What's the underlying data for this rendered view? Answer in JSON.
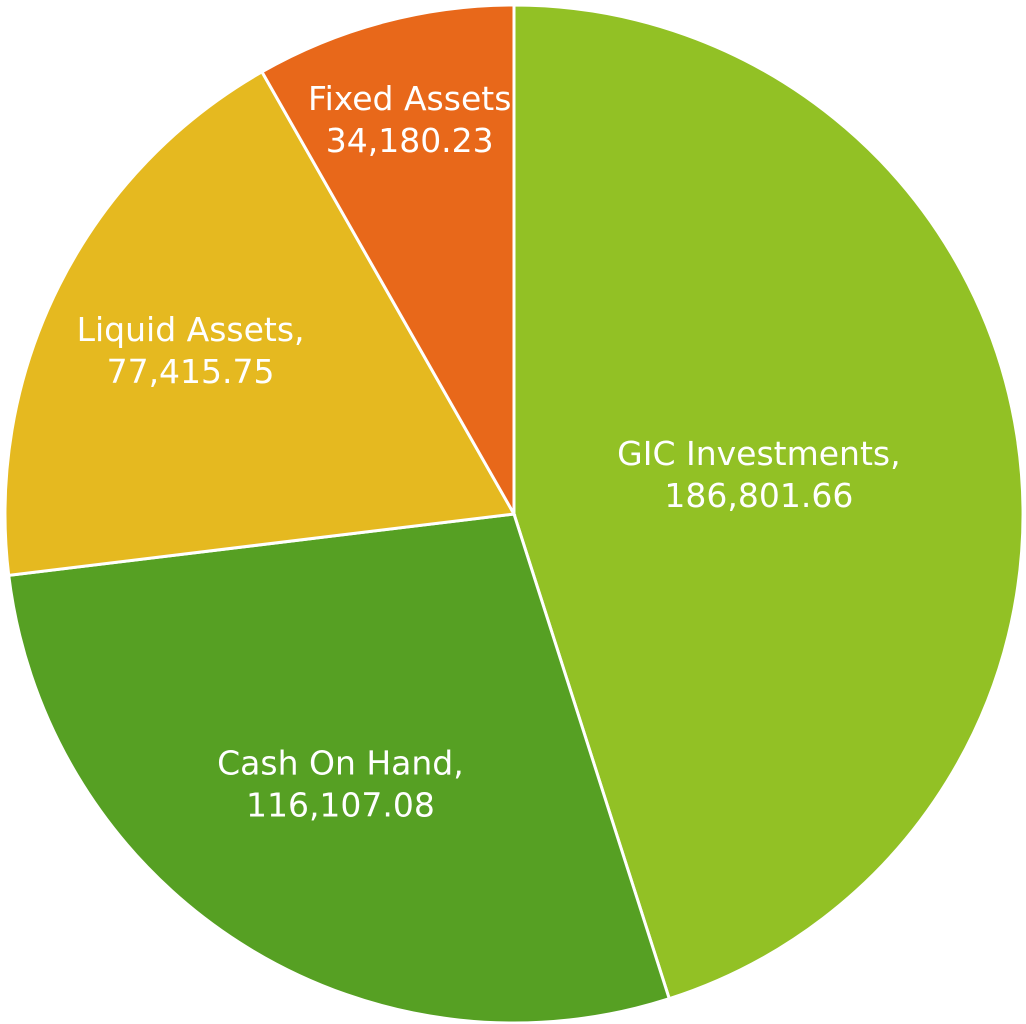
{
  "chart_data": {
    "type": "pie",
    "categories": [
      "GIC Investments,",
      "Cash On Hand,",
      "Liquid Assets,",
      "Fixed Assets"
    ],
    "values": [
      186801.66,
      116107.08,
      77415.75,
      34180.23
    ],
    "value_labels": [
      "186,801.66",
      "116,107.08",
      "77,415.75",
      "34,180.23"
    ],
    "colors": [
      "#92c125",
      "#56a023",
      "#e5b920",
      "#e8681a"
    ]
  }
}
